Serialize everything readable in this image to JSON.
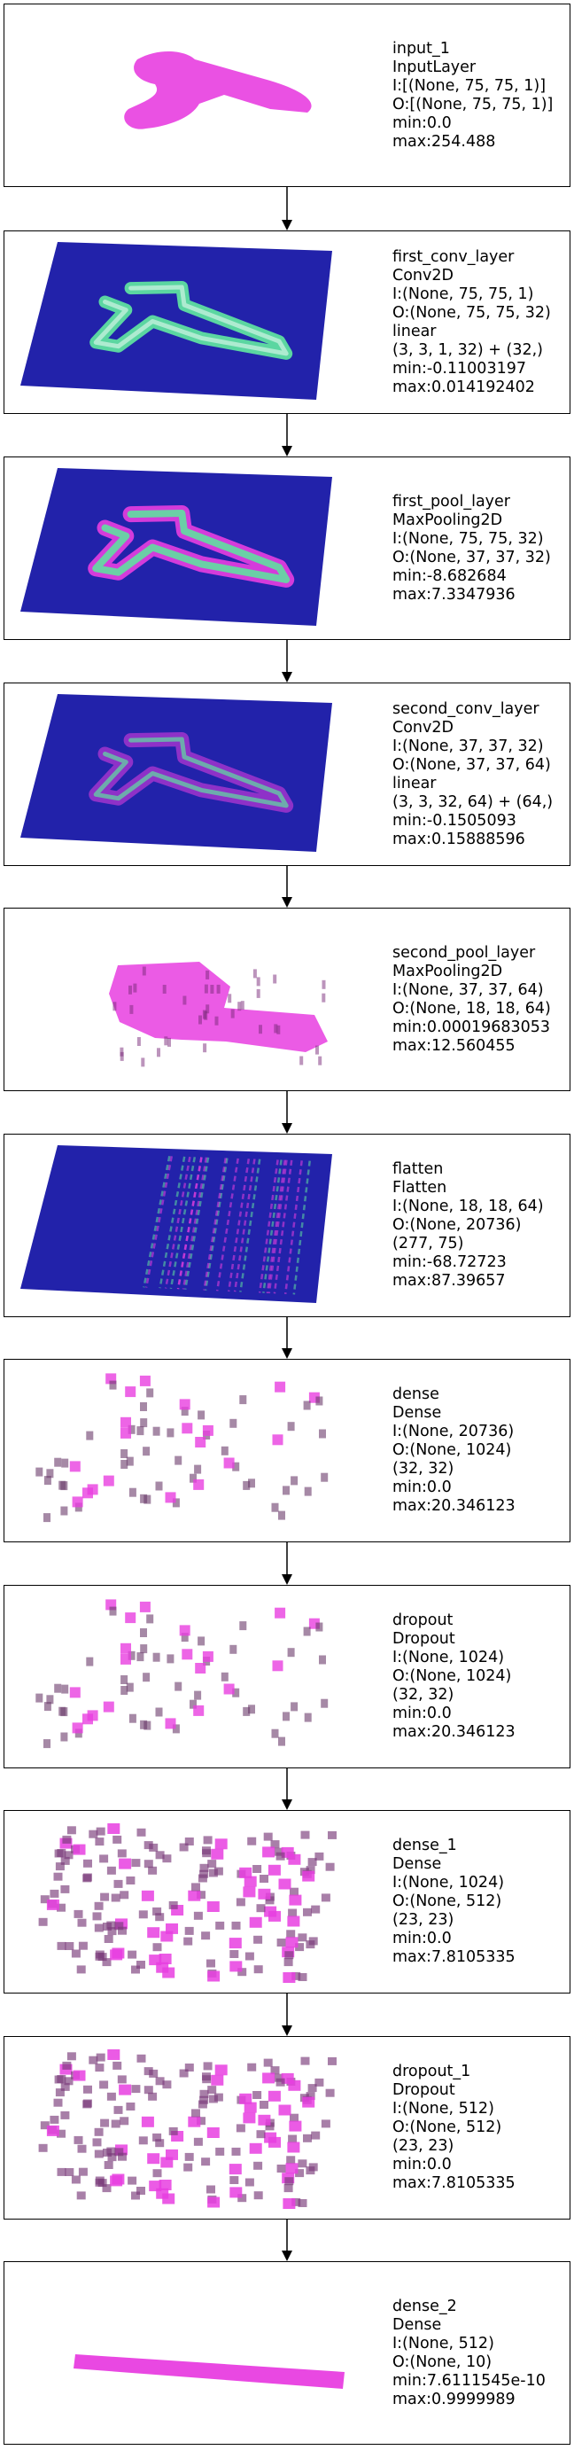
{
  "colors": {
    "plane": "#2222aa",
    "hi": "#e83ee0",
    "mid": "#5fe0a0",
    "border": "#000000"
  },
  "layers": [
    {
      "lines": [
        "input_1",
        "InputLayer",
        "I:[(None, 75, 75, 1)]",
        "O:[(None, 75, 75, 1)]",
        "min:0.0",
        "max:254.488"
      ],
      "viz": "shape-only"
    },
    {
      "lines": [
        "first_conv_layer",
        "Conv2D",
        "I:(None, 75, 75, 1)",
        "O:(None, 75, 75, 32)",
        "linear",
        "(3, 3, 1, 32) + (32,)",
        "min:-0.11003197",
        "max:0.014192402"
      ],
      "viz": "plane-shape-green"
    },
    {
      "lines": [
        "first_pool_layer",
        "MaxPooling2D",
        "I:(None, 75, 75, 32)",
        "O:(None, 37, 37, 32)",
        "min:-8.682684",
        "max:7.3347936"
      ],
      "viz": "plane-shape-mixed"
    },
    {
      "lines": [
        "second_conv_layer",
        "Conv2D",
        "I:(None, 37, 37, 32)",
        "O:(None, 37, 37, 64)",
        "linear",
        "(3, 3, 32, 64) + (64,)",
        "min:-0.1505093",
        "max:0.15888596"
      ],
      "viz": "plane-shape-faint"
    },
    {
      "lines": [
        "second_pool_layer",
        "MaxPooling2D",
        "I:(None, 37, 37, 64)",
        "O:(None, 18, 18, 64)",
        "min:0.00019683053",
        "max:12.560455"
      ],
      "viz": "blob-pink"
    },
    {
      "lines": [
        "flatten",
        "Flatten",
        "I:(None, 18, 18, 64)",
        "O:(None, 20736)",
        "(277, 75)",
        "min:-68.72723",
        "max:87.39657"
      ],
      "viz": "plane-stripes"
    },
    {
      "lines": [
        "dense",
        "Dense",
        "I:(None, 20736)",
        "O:(None, 1024)",
        "(32, 32)",
        "min:0.0",
        "max:20.346123"
      ],
      "viz": "sparse"
    },
    {
      "lines": [
        "dropout",
        "Dropout",
        "I:(None, 1024)",
        "O:(None, 1024)",
        "(32, 32)",
        "min:0.0",
        "max:20.346123"
      ],
      "viz": "sparse"
    },
    {
      "lines": [
        "dense_1",
        "Dense",
        "I:(None, 1024)",
        "O:(None, 512)",
        "(23, 23)",
        "min:0.0",
        "max:7.8105335"
      ],
      "viz": "dense-scatter"
    },
    {
      "lines": [
        "dropout_1",
        "Dropout",
        "I:(None, 512)",
        "O:(None, 512)",
        "(23, 23)",
        "min:0.0",
        "max:7.8105335"
      ],
      "viz": "dense-scatter"
    },
    {
      "lines": [
        "dense_2",
        "Dense",
        "I:(None, 512)",
        "O:(None, 10)",
        "min:7.6111545e-10",
        "max:0.9999989"
      ],
      "viz": "bar"
    }
  ]
}
